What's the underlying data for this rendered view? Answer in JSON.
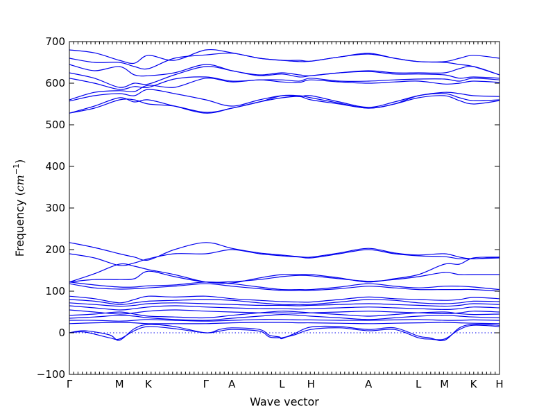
{
  "chart_data": {
    "type": "line",
    "title": "",
    "xlabel": "Wave vector",
    "ylabel_text": "Frequency (",
    "ylabel_unit_base": "cm",
    "ylabel_unit_exp": "−1",
    "ylabel_close": ")",
    "ylim": [
      -100,
      700
    ],
    "yticks": [
      -100,
      0,
      100,
      200,
      300,
      400,
      500,
      600,
      700
    ],
    "xlim": [
      0,
      8.6
    ],
    "xticks": [
      {
        "label": "Γ",
        "x": 0.0
      },
      {
        "label": "M",
        "x": 1.0
      },
      {
        "label": "K",
        "x": 1.58
      },
      {
        "label": "Γ",
        "x": 2.73
      },
      {
        "label": "A",
        "x": 3.25
      },
      {
        "label": "L",
        "x": 4.25
      },
      {
        "label": "H",
        "x": 4.83
      },
      {
        "label": "A",
        "x": 5.98
      },
      {
        "label": "L",
        "x": 6.98
      },
      {
        "label": "M",
        "x": 7.5
      },
      {
        "label": "K",
        "x": 8.08
      },
      {
        "label": "H",
        "x": 8.6
      }
    ],
    "zero_line": 0,
    "color": "#0000ee",
    "series": [
      {
        "x": [
          0,
          0.5,
          1.0,
          1.3,
          1.58,
          2.1,
          2.73,
          3.25,
          3.8,
          4.25,
          4.6,
          4.83,
          5.4,
          5.98,
          6.5,
          6.98,
          7.5,
          7.8,
          8.08,
          8.6
        ],
        "y": [
          680,
          673,
          655,
          648,
          667,
          655,
          680,
          673,
          660,
          655,
          652,
          653,
          663,
          672,
          660,
          652,
          652,
          660,
          667,
          660
        ]
      },
      {
        "x": [
          0,
          0.5,
          1.0,
          1.3,
          1.58,
          2.1,
          2.73,
          3.25,
          3.8,
          4.25,
          4.6,
          4.83,
          5.4,
          5.98,
          6.5,
          6.98,
          7.5,
          7.8,
          8.08,
          8.6
        ],
        "y": [
          660,
          650,
          650,
          640,
          635,
          660,
          668,
          672,
          660,
          655,
          655,
          653,
          663,
          670,
          660,
          652,
          650,
          645,
          640,
          620
        ]
      },
      {
        "x": [
          0,
          0.5,
          1.0,
          1.3,
          1.58,
          2.1,
          2.73,
          3.25,
          3.8,
          4.25,
          4.6,
          4.83,
          5.4,
          5.98,
          6.5,
          6.98,
          7.5,
          7.8,
          8.08,
          8.6
        ],
        "y": [
          645,
          630,
          640,
          620,
          618,
          625,
          645,
          630,
          620,
          625,
          620,
          618,
          625,
          630,
          625,
          625,
          625,
          635,
          640,
          620
        ]
      },
      {
        "x": [
          0,
          0.5,
          1.0,
          1.3,
          1.58,
          2.1,
          2.73,
          3.25,
          3.8,
          4.25,
          4.6,
          4.83,
          5.4,
          5.98,
          6.5,
          6.98,
          7.5,
          7.8,
          8.08,
          8.6
        ],
        "y": [
          625,
          612,
          590,
          600,
          598,
          620,
          640,
          630,
          618,
          622,
          615,
          618,
          625,
          628,
          622,
          622,
          620,
          612,
          615,
          612
        ]
      },
      {
        "x": [
          0,
          0.5,
          1.0,
          1.3,
          1.58,
          2.1,
          2.73,
          3.25,
          3.8,
          4.25,
          4.6,
          4.83,
          5.4,
          5.98,
          6.5,
          6.98,
          7.5,
          7.8,
          8.08,
          8.6
        ],
        "y": [
          612,
          600,
          585,
          592,
          590,
          610,
          615,
          605,
          608,
          608,
          605,
          612,
          605,
          605,
          608,
          610,
          610,
          605,
          612,
          608
        ]
      },
      {
        "x": [
          0,
          0.5,
          1.0,
          1.3,
          1.58,
          2.1,
          2.73,
          3.25,
          3.8,
          4.25,
          4.6,
          4.83,
          5.4,
          5.98,
          6.5,
          6.98,
          7.5,
          7.8,
          8.08,
          8.6
        ],
        "y": [
          560,
          578,
          582,
          580,
          595,
          590,
          612,
          603,
          608,
          603,
          602,
          608,
          603,
          600,
          603,
          605,
          598,
          600,
          605,
          602
        ]
      },
      {
        "x": [
          0,
          0.5,
          1.0,
          1.3,
          1.58,
          2.1,
          2.73,
          3.25,
          3.8,
          4.25,
          4.6,
          4.83,
          5.4,
          5.98,
          6.5,
          6.98,
          7.5,
          7.8,
          8.08,
          8.6
        ],
        "y": [
          557,
          570,
          575,
          570,
          585,
          575,
          560,
          545,
          560,
          570,
          568,
          570,
          555,
          542,
          555,
          570,
          578,
          575,
          570,
          568
        ]
      },
      {
        "x": [
          0,
          0.5,
          1.0,
          1.3,
          1.58,
          2.1,
          2.73,
          3.25,
          3.8,
          4.25,
          4.6,
          4.83,
          5.4,
          5.98,
          6.5,
          6.98,
          7.5,
          7.8,
          8.08,
          8.6
        ],
        "y": [
          528,
          545,
          565,
          555,
          560,
          545,
          528,
          540,
          555,
          570,
          570,
          565,
          552,
          540,
          550,
          570,
          575,
          565,
          558,
          560
        ]
      },
      {
        "x": [
          0,
          0.5,
          1.0,
          1.3,
          1.58,
          2.1,
          2.73,
          3.25,
          3.8,
          4.25,
          4.6,
          4.83,
          5.4,
          5.98,
          6.5,
          6.98,
          7.5,
          7.8,
          8.08,
          8.6
        ],
        "y": [
          528,
          540,
          560,
          560,
          550,
          545,
          530,
          540,
          555,
          565,
          568,
          560,
          550,
          540,
          550,
          565,
          570,
          558,
          550,
          558
        ]
      },
      {
        "x": [
          0,
          0.5,
          1.0,
          1.3,
          1.58,
          2.1,
          2.73,
          3.25,
          3.8,
          4.25,
          4.6,
          4.83,
          5.4,
          5.98,
          6.5,
          6.98,
          7.5,
          7.8,
          8.08,
          8.6
        ],
        "y": [
          217,
          205,
          190,
          182,
          175,
          200,
          217,
          203,
          192,
          187,
          183,
          182,
          192,
          203,
          192,
          187,
          190,
          182,
          178,
          182
        ]
      },
      {
        "x": [
          0,
          0.5,
          1.0,
          1.3,
          1.58,
          2.1,
          2.73,
          3.25,
          3.8,
          4.25,
          4.6,
          4.83,
          5.4,
          5.98,
          6.5,
          6.98,
          7.5,
          7.8,
          8.08,
          8.6
        ],
        "y": [
          190,
          180,
          162,
          168,
          178,
          190,
          190,
          200,
          190,
          185,
          182,
          180,
          190,
          200,
          190,
          185,
          183,
          178,
          178,
          180
        ]
      },
      {
        "x": [
          0,
          0.5,
          1.0,
          1.3,
          1.58,
          2.1,
          2.73,
          3.25,
          3.8,
          4.25,
          4.6,
          4.83,
          5.4,
          5.98,
          6.5,
          6.98,
          7.5,
          7.8,
          8.08,
          8.6
        ],
        "y": [
          122,
          142,
          165,
          160,
          152,
          140,
          122,
          120,
          132,
          140,
          140,
          140,
          132,
          122,
          130,
          140,
          165,
          165,
          180,
          182
        ]
      },
      {
        "x": [
          0,
          0.5,
          1.0,
          1.3,
          1.58,
          2.1,
          2.73,
          3.25,
          3.8,
          4.25,
          4.6,
          4.83,
          5.4,
          5.98,
          6.5,
          6.98,
          7.5,
          7.8,
          8.08,
          8.6
        ],
        "y": [
          122,
          128,
          128,
          130,
          148,
          135,
          122,
          123,
          128,
          135,
          138,
          137,
          130,
          124,
          128,
          135,
          145,
          140,
          140,
          140
        ]
      },
      {
        "x": [
          0,
          0.5,
          1.0,
          1.3,
          1.58,
          2.1,
          2.73,
          3.25,
          3.8,
          4.25,
          4.6,
          4.83,
          5.4,
          5.98,
          6.5,
          6.98,
          7.5,
          7.8,
          8.08,
          8.6
        ],
        "y": [
          122,
          115,
          110,
          110,
          113,
          115,
          122,
          118,
          110,
          104,
          104,
          104,
          110,
          118,
          112,
          108,
          112,
          112,
          110,
          104
        ]
      },
      {
        "x": [
          0,
          0.5,
          1.0,
          1.3,
          1.58,
          2.1,
          2.73,
          3.25,
          3.8,
          4.25,
          4.6,
          4.83,
          5.4,
          5.98,
          6.5,
          6.98,
          7.5,
          7.8,
          8.08,
          8.6
        ],
        "y": [
          118,
          108,
          105,
          106,
          108,
          112,
          118,
          112,
          106,
          102,
          102,
          102,
          106,
          112,
          108,
          104,
          104,
          104,
          104,
          100
        ]
      },
      {
        "x": [
          0,
          0.5,
          1.0,
          1.3,
          1.58,
          2.1,
          2.73,
          3.25,
          3.8,
          4.25,
          4.6,
          4.83,
          5.4,
          5.98,
          6.5,
          6.98,
          7.5,
          7.8,
          8.08,
          8.6
        ],
        "y": [
          88,
          82,
          72,
          80,
          88,
          86,
          88,
          82,
          78,
          75,
          74,
          74,
          80,
          86,
          82,
          80,
          78,
          80,
          85,
          82
        ]
      },
      {
        "x": [
          0,
          0.5,
          1.0,
          1.3,
          1.58,
          2.1,
          2.73,
          3.25,
          3.8,
          4.25,
          4.6,
          4.83,
          5.4,
          5.98,
          6.5,
          6.98,
          7.5,
          7.8,
          8.08,
          8.6
        ],
        "y": [
          80,
          76,
          68,
          72,
          76,
          78,
          80,
          78,
          72,
          68,
          68,
          68,
          74,
          80,
          78,
          72,
          70,
          72,
          76,
          75
        ]
      },
      {
        "x": [
          0,
          0.5,
          1.0,
          1.3,
          1.58,
          2.1,
          2.73,
          3.25,
          3.8,
          4.25,
          4.6,
          4.83,
          5.4,
          5.98,
          6.5,
          6.98,
          7.5,
          7.8,
          8.08,
          8.6
        ],
        "y": [
          72,
          68,
          64,
          66,
          70,
          72,
          70,
          68,
          66,
          66,
          65,
          66,
          68,
          70,
          68,
          66,
          64,
          66,
          70,
          68
        ]
      },
      {
        "x": [
          0,
          0.5,
          1.0,
          1.3,
          1.58,
          2.1,
          2.73,
          3.25,
          3.8,
          4.25,
          4.6,
          4.83,
          5.4,
          5.98,
          6.5,
          6.98,
          7.5,
          7.8,
          8.08,
          8.6
        ],
        "y": [
          65,
          60,
          55,
          58,
          62,
          65,
          62,
          60,
          58,
          58,
          57,
          58,
          60,
          62,
          60,
          58,
          56,
          58,
          62,
          60
        ]
      },
      {
        "x": [
          0,
          0.5,
          1.0,
          1.3,
          1.58,
          2.1,
          2.73,
          3.25,
          3.8,
          4.25,
          4.6,
          4.83,
          5.4,
          5.98,
          6.5,
          6.98,
          7.5,
          7.8,
          8.08,
          8.6
        ],
        "y": [
          55,
          50,
          45,
          48,
          52,
          55,
          52,
          50,
          48,
          48,
          47,
          48,
          50,
          52,
          50,
          48,
          46,
          48,
          52,
          50
        ]
      },
      {
        "x": [
          0,
          0.5,
          1.0,
          1.3,
          1.58,
          2.1,
          2.73,
          3.25,
          3.8,
          4.25,
          4.6,
          4.83,
          5.4,
          5.98,
          6.5,
          6.98,
          7.5,
          7.8,
          8.08,
          8.6
        ],
        "y": [
          42,
          45,
          50,
          45,
          40,
          38,
          36,
          42,
          48,
          52,
          50,
          48,
          44,
          40,
          44,
          48,
          50,
          46,
          44,
          45
        ]
      },
      {
        "x": [
          0,
          0.5,
          1.0,
          1.3,
          1.58,
          2.1,
          2.73,
          3.25,
          3.8,
          4.25,
          4.6,
          4.83,
          5.4,
          5.98,
          6.5,
          6.98,
          7.5,
          7.8,
          8.08,
          8.6
        ],
        "y": [
          35,
          38,
          42,
          40,
          36,
          32,
          30,
          35,
          40,
          44,
          42,
          40,
          36,
          32,
          36,
          40,
          42,
          40,
          38,
          36
        ]
      },
      {
        "x": [
          0,
          0.5,
          1.0,
          1.3,
          1.58,
          2.1,
          2.73,
          3.25,
          3.8,
          4.25,
          4.6,
          4.83,
          5.4,
          5.98,
          6.5,
          6.98,
          7.5,
          7.8,
          8.08,
          8.6
        ],
        "y": [
          30,
          30,
          28,
          30,
          32,
          30,
          28,
          30,
          32,
          32,
          31,
          31,
          30,
          30,
          31,
          32,
          30,
          30,
          31,
          30
        ]
      },
      {
        "x": [
          0,
          0.5,
          1.0,
          1.3,
          1.58,
          2.1,
          2.73,
          3.25,
          3.8,
          4.25,
          4.6,
          4.83,
          5.4,
          5.98,
          6.5,
          6.98,
          7.5,
          7.8,
          8.08,
          8.6
        ],
        "y": [
          22,
          24,
          25,
          24,
          22,
          22,
          22,
          24,
          25,
          25,
          24,
          24,
          23,
          22,
          23,
          24,
          25,
          24,
          23,
          22
        ]
      },
      {
        "x": [
          0,
          0.3,
          0.8,
          1.0,
          1.3,
          1.58,
          2.1,
          2.73,
          3.0,
          3.25,
          3.8,
          4.0,
          4.2,
          4.25,
          4.5,
          4.83,
          5.4,
          5.98,
          6.5,
          6.98,
          7.2,
          7.5,
          7.8,
          8.08,
          8.6
        ],
        "y": [
          0,
          2,
          -12,
          -15,
          5,
          15,
          10,
          0,
          4,
          8,
          4,
          -10,
          -12,
          -12,
          -5,
          8,
          12,
          5,
          8,
          -12,
          -15,
          -15,
          8,
          18,
          15
        ]
      },
      {
        "x": [
          0,
          0.3,
          0.8,
          1.0,
          1.3,
          1.58,
          2.1,
          2.73,
          3.0,
          3.25,
          3.8,
          4.0,
          4.2,
          4.25,
          4.5,
          4.83,
          5.4,
          5.98,
          6.5,
          6.98,
          7.2,
          7.5,
          7.8,
          8.08,
          8.6
        ],
        "y": [
          0,
          5,
          -5,
          -18,
          10,
          20,
          15,
          0,
          8,
          12,
          8,
          -6,
          -10,
          -14,
          -2,
          14,
          15,
          8,
          12,
          -8,
          -12,
          -18,
          12,
          20,
          18
        ]
      }
    ]
  }
}
